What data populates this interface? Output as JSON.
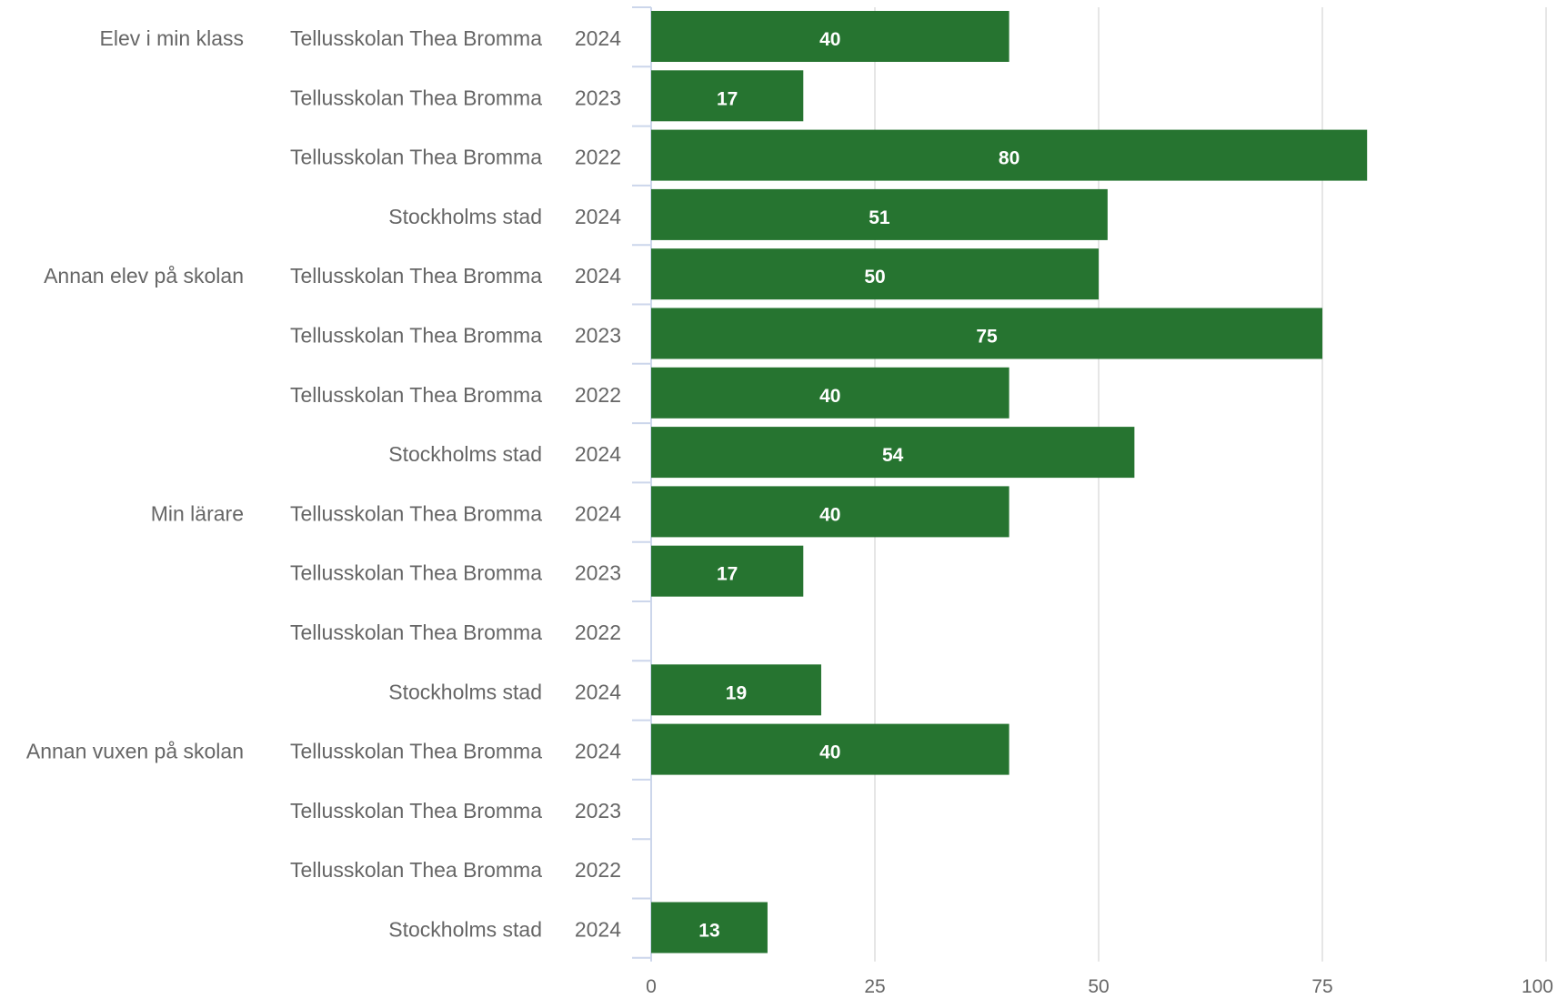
{
  "chart_data": {
    "type": "bar",
    "orientation": "horizontal",
    "bar_color": "#267430",
    "grid": true,
    "xlim": [
      0,
      100
    ],
    "x_ticks": [
      "0",
      "25",
      "50",
      "75",
      "100"
    ],
    "groups": [
      {
        "label": "Elev i min klass",
        "rows": [
          {
            "school": "Tellusskolan Thea Bromma",
            "year": "2024",
            "value": 40
          },
          {
            "school": "Tellusskolan Thea Bromma",
            "year": "2023",
            "value": 17
          },
          {
            "school": "Tellusskolan Thea Bromma",
            "year": "2022",
            "value": 80
          },
          {
            "school": "Stockholms stad",
            "year": "2024",
            "value": 51
          }
        ]
      },
      {
        "label": "Annan elev på skolan",
        "rows": [
          {
            "school": "Tellusskolan Thea Bromma",
            "year": "2024",
            "value": 50
          },
          {
            "school": "Tellusskolan Thea Bromma",
            "year": "2023",
            "value": 75
          },
          {
            "school": "Tellusskolan Thea Bromma",
            "year": "2022",
            "value": 40
          },
          {
            "school": "Stockholms stad",
            "year": "2024",
            "value": 54
          }
        ]
      },
      {
        "label": "Min lärare",
        "rows": [
          {
            "school": "Tellusskolan Thea Bromma",
            "year": "2024",
            "value": 40
          },
          {
            "school": "Tellusskolan Thea Bromma",
            "year": "2023",
            "value": 17
          },
          {
            "school": "Tellusskolan Thea Bromma",
            "year": "2022",
            "value": null
          },
          {
            "school": "Stockholms stad",
            "year": "2024",
            "value": 19
          }
        ]
      },
      {
        "label": "Annan vuxen på skolan",
        "rows": [
          {
            "school": "Tellusskolan Thea Bromma",
            "year": "2024",
            "value": 40
          },
          {
            "school": "Tellusskolan Thea Bromma",
            "year": "2023",
            "value": null
          },
          {
            "school": "Tellusskolan Thea Bromma",
            "year": "2022",
            "value": null
          },
          {
            "school": "Stockholms stad",
            "year": "2024",
            "value": 13
          }
        ]
      }
    ]
  }
}
